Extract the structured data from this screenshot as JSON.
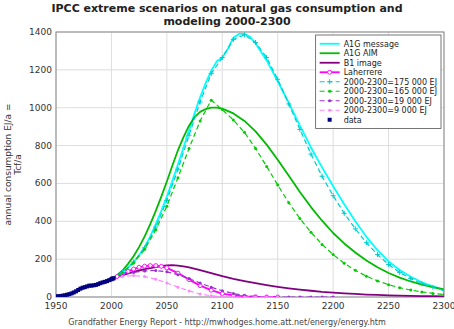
{
  "chart_data": {
    "type": "line",
    "title": "IPCC extreme scenarios on natural gas consumption and\nmodeling 2000-2300",
    "y_label": "annual consumption EJ/a =\nTcf/a",
    "annotations": [
      "Grandfather Energy Report - http://mwhodges.home.att.net/energy/energy.htm"
    ],
    "xlim": [
      1950,
      2300
    ],
    "ylim": [
      0,
      1400
    ],
    "xticks": [
      1950,
      2000,
      2050,
      2100,
      2150,
      2200,
      2250,
      2300
    ],
    "yticks": [
      0,
      200,
      400,
      600,
      800,
      1000,
      1200,
      1400
    ],
    "grid": true,
    "legend": "upper right",
    "series": [
      {
        "name": "A1G message",
        "color": "#00FFFF",
        "line_style": "solid",
        "x": [
          2000,
          2005,
          2010,
          2015,
          2020,
          2025,
          2030,
          2035,
          2040,
          2045,
          2050,
          2055,
          2060,
          2065,
          2070,
          2075,
          2080,
          2085,
          2090,
          2095,
          2100,
          2105,
          2110,
          2115,
          2120,
          2125,
          2130,
          2140,
          2150,
          2160,
          2170,
          2180,
          2190,
          2200,
          2210,
          2220,
          2230,
          2240,
          2250,
          2260,
          2270,
          2280,
          2290,
          2300
        ],
        "values": [
          95,
          110,
          130,
          155,
          185,
          220,
          265,
          320,
          385,
          455,
          530,
          615,
          700,
          790,
          880,
          970,
          1055,
          1130,
          1195,
          1245,
          1265,
          1310,
          1370,
          1390,
          1390,
          1375,
          1340,
          1250,
          1140,
          1025,
          905,
          790,
          685,
          585,
          490,
          400,
          318,
          248,
          188,
          143,
          107,
          78,
          56,
          38
        ]
      },
      {
        "name": "A1G AIM",
        "color": "#00BB00",
        "line_style": "solid",
        "x": [
          2000,
          2005,
          2010,
          2015,
          2020,
          2025,
          2030,
          2035,
          2040,
          2045,
          2050,
          2055,
          2060,
          2065,
          2070,
          2075,
          2080,
          2085,
          2090,
          2095,
          2100,
          2110,
          2120,
          2130,
          2140,
          2150,
          2160,
          2170,
          2180,
          2190,
          2200,
          2210,
          2220,
          2230,
          2240,
          2250,
          2260,
          2270,
          2280,
          2290,
          2300
        ],
        "values": [
          95,
          115,
          140,
          175,
          215,
          265,
          320,
          385,
          455,
          530,
          610,
          695,
          775,
          845,
          905,
          950,
          978,
          993,
          1000,
          1000,
          995,
          970,
          930,
          875,
          805,
          725,
          640,
          555,
          475,
          403,
          338,
          283,
          235,
          193,
          157,
          127,
          102,
          82,
          65,
          52,
          40
        ]
      },
      {
        "name": "B1 image",
        "color": "#800080",
        "line_style": "solid",
        "x": [
          2000,
          2005,
          2010,
          2015,
          2020,
          2025,
          2030,
          2035,
          2040,
          2045,
          2050,
          2055,
          2060,
          2065,
          2070,
          2080,
          2090,
          2100,
          2110,
          2120,
          2130,
          2140,
          2150,
          2160,
          2170,
          2180,
          2190,
          2200,
          2210,
          2220,
          2230,
          2240,
          2250,
          2260,
          2270,
          2280,
          2290,
          2300
        ],
        "values": [
          95,
          105,
          115,
          125,
          133,
          140,
          147,
          153,
          158,
          163,
          167,
          168,
          166,
          162,
          156,
          142,
          126,
          110,
          96,
          84,
          73,
          63,
          54,
          46,
          39,
          33,
          27,
          23,
          19,
          16,
          13,
          11,
          9,
          7,
          6,
          5,
          4,
          3
        ]
      },
      {
        "name": "Laherrere",
        "color": "#FF00FF",
        "line_style": "solid",
        "marker": "circle",
        "x": [
          2000,
          2005,
          2010,
          2015,
          2020,
          2025,
          2030,
          2035,
          2040,
          2045,
          2050,
          2060,
          2070,
          2080,
          2090,
          2100,
          2110,
          2120,
          2130,
          2140,
          2150
        ],
        "values": [
          95,
          108,
          120,
          135,
          148,
          157,
          163,
          166,
          166,
          162,
          154,
          126,
          92,
          60,
          36,
          18,
          8,
          3,
          1,
          0,
          0
        ]
      },
      {
        "name": "2000-2300=175 000 EJ",
        "color": "#00CCCC",
        "line_style": "dashed",
        "marker": "plus",
        "x": [
          2000,
          2010,
          2020,
          2030,
          2040,
          2050,
          2060,
          2070,
          2080,
          2090,
          2100,
          2110,
          2120,
          2130,
          2140,
          2150,
          2160,
          2170,
          2180,
          2190,
          2200,
          2210,
          2220,
          2230,
          2240,
          2250,
          2260,
          2270,
          2280,
          2290,
          2300
        ],
        "values": [
          95,
          130,
          185,
          260,
          370,
          510,
          675,
          855,
          1030,
          1180,
          1265,
          1360,
          1385,
          1345,
          1265,
          1150,
          1020,
          885,
          755,
          638,
          535,
          442,
          360,
          287,
          224,
          172,
          130,
          97,
          71,
          51,
          35
        ]
      },
      {
        "name": "2000-2300=165 000 EJ",
        "color": "#00CC00",
        "line_style": "dashed",
        "marker": "dot",
        "x": [
          2000,
          2010,
          2020,
          2030,
          2040,
          2050,
          2060,
          2070,
          2080,
          2090,
          2100,
          2110,
          2120,
          2130,
          2140,
          2150,
          2160,
          2170,
          2180,
          2190,
          2200,
          2210,
          2220,
          2230,
          2240,
          2250,
          2260,
          2270,
          2280,
          2290,
          2300
        ],
        "values": [
          95,
          128,
          180,
          252,
          355,
          480,
          630,
          785,
          930,
          1040,
          990,
          935,
          870,
          785,
          690,
          592,
          498,
          415,
          342,
          278,
          224,
          178,
          141,
          110,
          85,
          65,
          49,
          37,
          27,
          19,
          13
        ]
      },
      {
        "name": "2000-2300=19 000 EJ",
        "color": "#9933CC",
        "line_style": "dashed",
        "marker": "dot",
        "x": [
          2000,
          2010,
          2020,
          2030,
          2040,
          2050,
          2060,
          2070,
          2080,
          2090,
          2100,
          2110,
          2120,
          2130,
          2140,
          2150,
          2160,
          2170,
          2180,
          2190,
          2200
        ],
        "values": [
          95,
          115,
          130,
          138,
          140,
          133,
          118,
          97,
          74,
          52,
          33,
          18,
          8,
          3,
          1,
          0,
          0,
          0,
          0,
          0,
          0
        ]
      },
      {
        "name": "2000-2300=9 000 EJ",
        "color": "#FF88FF",
        "line_style": "dashed",
        "marker": "dot",
        "x": [
          2000,
          2010,
          2020,
          2030,
          2040,
          2050,
          2060,
          2070,
          2080,
          2090,
          2100,
          2110,
          2120,
          2130,
          2140,
          2150
        ],
        "values": [
          95,
          108,
          113,
          108,
          94,
          74,
          52,
          32,
          16,
          6,
          1,
          0,
          0,
          0,
          0,
          0
        ]
      },
      {
        "name": "data",
        "color": "#000080",
        "type": "scatter",
        "marker": "square",
        "x": [
          1950,
          1952,
          1954,
          1956,
          1958,
          1960,
          1962,
          1964,
          1966,
          1968,
          1970,
          1972,
          1974,
          1976,
          1978,
          1980,
          1982,
          1984,
          1986,
          1988,
          1990,
          1992,
          1994,
          1996,
          1998,
          2000,
          2001,
          2002
        ],
        "values": [
          3,
          4,
          5,
          7,
          9,
          12,
          15,
          19,
          24,
          30,
          37,
          44,
          49,
          52,
          56,
          60,
          60,
          62,
          64,
          68,
          73,
          77,
          80,
          84,
          89,
          94,
          97,
          99
        ]
      }
    ]
  }
}
